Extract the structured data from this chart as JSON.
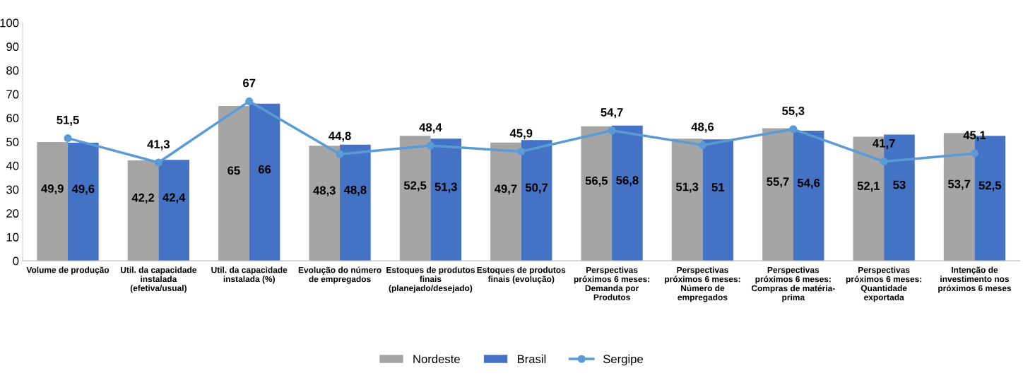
{
  "chart_data": {
    "type": "bar",
    "categories": [
      "Volume de produção",
      "Util. da capacidade\ninstalada\n(efetiva/usual)",
      "Util. da capacidade\ninstalada (%)",
      "Evolução do número\nde empregados",
      "Estoques de produtos\nfinais\n(planejado/desejado)",
      "Estoques de produtos\nfinais (evolução)",
      "Perspectivas\npróximos 6 meses:\nDemanda por\nProdutos",
      "Perspectivas\npróximos 6 meses:\nNúmero de\nempregados",
      "Perspectivas\npróximos 6 meses:\nCompras de matéria-\nprima",
      "Perspectivas\npróximos 6 meses:\nQuantidade\nexportada",
      "Intenção de\ninvestimento nos\npróximos 6 meses"
    ],
    "series": [
      {
        "name": "Nordeste",
        "color": "#a5a5a5",
        "values": [
          49.9,
          42.2,
          65,
          48.3,
          52.5,
          49.7,
          56.5,
          51.3,
          55.7,
          52.1,
          53.7
        ],
        "value_labels": [
          "49,9",
          "42,2",
          "65",
          "48,3",
          "52,5",
          "49,7",
          "56,5",
          "51,3",
          "55,7",
          "52,1",
          "53,7"
        ]
      },
      {
        "name": "Brasil",
        "color": "#4472c4",
        "values": [
          49.6,
          42.4,
          66,
          48.8,
          51.3,
          50.7,
          56.8,
          51,
          54.6,
          53,
          52.5
        ],
        "value_labels": [
          "49,6",
          "42,4",
          "66",
          "48,8",
          "51,3",
          "50,7",
          "56,8",
          "51",
          "54,6",
          "53",
          "52,5"
        ]
      },
      {
        "name": "Sergipe",
        "type": "line",
        "color": "#5b9bd5",
        "marker": "circle",
        "values": [
          51.5,
          41.3,
          67,
          44.8,
          48.4,
          45.9,
          54.7,
          48.6,
          55.3,
          41.7,
          45.1
        ],
        "value_labels": [
          "51,5",
          "41,3",
          "67",
          "44,8",
          "48,4",
          "45,9",
          "54,7",
          "48,6",
          "55,3",
          "41,7",
          "45,1"
        ]
      }
    ],
    "ylim": [
      0,
      100
    ],
    "yticks": [
      0,
      10,
      20,
      30,
      40,
      50,
      60,
      70,
      80,
      90,
      100
    ],
    "legend": "bottom"
  }
}
